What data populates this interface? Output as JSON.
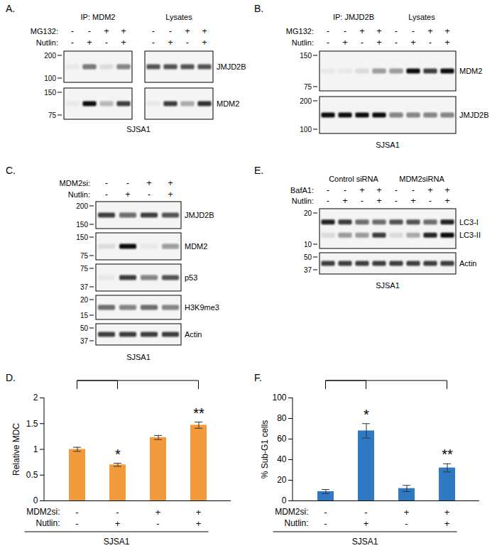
{
  "blots": [
    {
      "panel": "A.",
      "cell_line": "SJSA1",
      "separate_boxes": true,
      "groups": [
        {
          "text": "IP: MDM2",
          "lanes": 4
        },
        {
          "text": "Lysates",
          "lanes": 4
        }
      ],
      "treatments": [
        {
          "name": "MG132:",
          "signs": [
            "-",
            "-",
            "+",
            "+",
            "-",
            "-",
            "+",
            "+"
          ]
        },
        {
          "name": "Nutlin:",
          "signs": [
            "-",
            "+",
            "-",
            "+",
            "-",
            "+",
            "-",
            "+"
          ]
        }
      ],
      "rows": [
        {
          "markers": [
            200,
            100
          ],
          "bands": [
            {
              "name": "JMJD2B",
              "intensities": [
                0.05,
                0.55,
                0.1,
                0.5,
                0.7,
                0.7,
                0.7,
                0.7
              ]
            }
          ]
        },
        {
          "markers": [
            150,
            75
          ],
          "bands": [
            {
              "name": "MDM2",
              "intensities": [
                0.05,
                1,
                0.25,
                0.8,
                0.05,
                0.8,
                0.3,
                0.85
              ]
            }
          ]
        }
      ]
    },
    {
      "panel": "B.",
      "cell_line": "SJSA1",
      "separate_boxes": false,
      "groups": [
        {
          "text": "IP: JMJD2B",
          "lanes": 4
        },
        {
          "text": "Lysates",
          "lanes": 4
        }
      ],
      "treatments": [
        {
          "name": "MG132:",
          "signs": [
            "-",
            "-",
            "+",
            "+",
            "-",
            "-",
            "+",
            "+"
          ]
        },
        {
          "name": "Nutlin:",
          "signs": [
            "-",
            "+",
            "-",
            "+",
            "-",
            "+",
            "-",
            "+"
          ]
        }
      ],
      "rows": [
        {
          "markers": [
            150,
            75
          ],
          "bands": [
            {
              "name": "MDM2",
              "intensities": [
                0.05,
                0.05,
                0.1,
                0.4,
                0.4,
                1,
                0.8,
                1
              ]
            }
          ]
        },
        {
          "markers": [
            200,
            100
          ],
          "bands": [
            {
              "name": "JMJD2B",
              "intensities": [
                1,
                1,
                1,
                1,
                0.5,
                0.5,
                0.5,
                0.5
              ]
            }
          ]
        }
      ]
    },
    {
      "panel": "C.",
      "cell_line": "SJSA1",
      "separate_boxes": true,
      "groups": [],
      "treatments": [
        {
          "name": "MDM2si:",
          "signs": [
            "-",
            "-",
            "+",
            "+"
          ]
        },
        {
          "name": "Nutlin:",
          "signs": [
            "-",
            "+",
            "-",
            "+"
          ]
        }
      ],
      "rows": [
        {
          "markers": [
            200,
            150
          ],
          "bands": [
            {
              "name": "JMJD2B",
              "intensities": [
                0.8,
                0.6,
                0.8,
                0.7
              ]
            }
          ]
        },
        {
          "markers": [
            150,
            75
          ],
          "bands": [
            {
              "name": "MDM2",
              "intensities": [
                0.1,
                1,
                0.05,
                0.4
              ]
            }
          ]
        },
        {
          "markers": [
            75,
            37
          ],
          "bands": [
            {
              "name": "p53",
              "intensities": [
                0.05,
                0.8,
                0.5,
                0.7
              ]
            }
          ]
        },
        {
          "markers": [
            20,
            15
          ],
          "bands": [
            {
              "name": "H3K9me3",
              "intensities": [
                0.6,
                0.5,
                0.6,
                0.5
              ]
            }
          ]
        },
        {
          "markers": [
            50,
            37
          ],
          "bands": [
            {
              "name": "Actin",
              "intensities": [
                0.8,
                0.8,
                0.8,
                0.8
              ]
            }
          ]
        }
      ]
    },
    {
      "panel": "E.",
      "cell_line": "SJSA1",
      "separate_boxes": false,
      "groups": [
        {
          "text": "Control siRNA",
          "lanes": 4
        },
        {
          "text": "MDM2siRNA",
          "lanes": 4
        }
      ],
      "treatments": [
        {
          "name": "BafA1:",
          "signs": [
            "-",
            "-",
            "+",
            "+",
            "-",
            "-",
            "+",
            "+"
          ]
        },
        {
          "name": "Nutlin:",
          "signs": [
            "-",
            "+",
            "-",
            "+",
            "-",
            "+",
            "-",
            "+"
          ]
        }
      ],
      "rows": [
        {
          "markers": [
            20,
            10
          ],
          "bands": [
            {
              "name": "LC3-I",
              "intensities": [
                0.9,
                0.8,
                0.6,
                0.6,
                0.7,
                0.7,
                0.6,
                0.9
              ]
            },
            {
              "name": "LC3-II",
              "intensities": [
                0.1,
                0.4,
                0.4,
                0.8,
                0.1,
                0.3,
                0.9,
                1
              ]
            }
          ]
        },
        {
          "markers": [
            50,
            37
          ],
          "bands": [
            {
              "name": "Actin",
              "intensities": [
                0.8,
                0.8,
                0.8,
                0.8,
                0.8,
                0.8,
                0.8,
                0.8
              ]
            }
          ]
        }
      ]
    }
  ],
  "chart_data": [
    {
      "type": "bar",
      "panel": "D.",
      "y_label": "Relative MDC",
      "categories": [
        null,
        null,
        null,
        null
      ],
      "values": [
        1.0,
        0.7,
        1.23,
        1.47
      ],
      "errors": [
        0.04,
        0.03,
        0.04,
        0.06
      ],
      "color": "#f39a3d",
      "ylim": [
        0,
        2
      ],
      "yticks": [
        0,
        0.5,
        1,
        1.5,
        2
      ],
      "tick_labels": "y",
      "annotations": [
        {
          "category_index": 1,
          "text": "*"
        },
        {
          "category_index": 3,
          "text": "**"
        }
      ],
      "comparisons": [
        [
          0,
          1
        ],
        [
          0,
          3
        ]
      ],
      "treatments": [
        {
          "name": "MDM2si:",
          "signs": [
            "-",
            "-",
            "+",
            "+"
          ]
        },
        {
          "name": "Nutlin:",
          "signs": [
            "-",
            "+",
            "-",
            "+"
          ]
        }
      ],
      "cell_line": "SJSA1"
    },
    {
      "type": "bar",
      "panel": "F.",
      "y_label": "% Sub-G1 cells",
      "categories": [
        null,
        null,
        null,
        null
      ],
      "values": [
        9,
        68,
        12,
        32
      ],
      "errors": [
        2,
        7,
        3,
        4
      ],
      "color": "#2f78c4",
      "ylim": [
        0,
        100
      ],
      "yticks": [
        0,
        20,
        40,
        60,
        80,
        100
      ],
      "tick_labels": "y",
      "annotations": [
        {
          "category_index": 1,
          "text": "*"
        },
        {
          "category_index": 3,
          "text": "**"
        }
      ],
      "comparisons": [
        [
          0,
          1
        ],
        [
          0,
          3
        ]
      ],
      "treatments": [
        {
          "name": "MDM2si:",
          "signs": [
            "-",
            "-",
            "+",
            "+"
          ]
        },
        {
          "name": "Nutlin:",
          "signs": [
            "-",
            "+",
            "-",
            "+"
          ]
        }
      ],
      "cell_line": "SJSA1"
    }
  ]
}
